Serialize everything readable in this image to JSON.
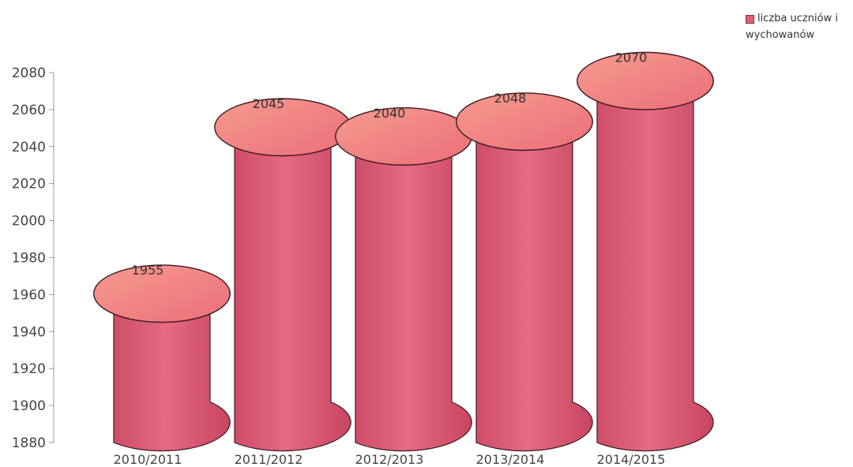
{
  "chart_data": {
    "type": "bar",
    "style": "3d-cylinder",
    "categories": [
      "2010/2011",
      "2011/2012",
      "2012/2013",
      "2013/2014",
      "2014/2015"
    ],
    "series": [
      {
        "name": "liczba uczniów i wychowanów",
        "values": [
          1955,
          2045,
          2040,
          2048,
          2070
        ],
        "color": "#e0607a"
      }
    ],
    "data_labels": [
      "1955",
      "2045",
      "2040",
      "2048",
      "2070"
    ],
    "yticks": [
      "1880",
      "1900",
      "1920",
      "1940",
      "1960",
      "1980",
      "2000",
      "2020",
      "2040",
      "2060",
      "2080"
    ],
    "ylim": [
      1880,
      2080
    ],
    "title": "",
    "xlabel": "",
    "ylabel": "",
    "legend_position": "top-right",
    "grid": false
  },
  "legend": {
    "label": "liczba uczniów i wychowanów",
    "swatch_color": "#e0607a"
  }
}
